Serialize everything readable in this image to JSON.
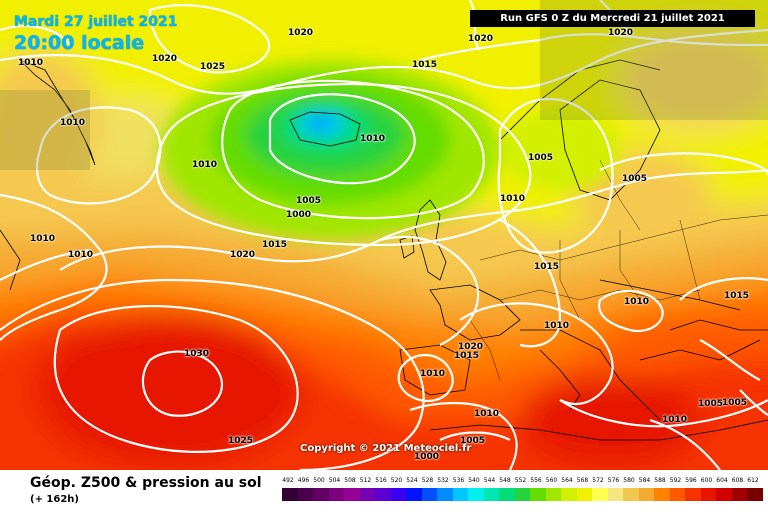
{
  "header": {
    "date": "Mardi 27 juillet 2021",
    "time": "20:00 locale",
    "run": "Run GFS 0 Z du Mercredi 21 juillet 2021",
    "copyright": "Copyright © 2021 Meteociel.fr"
  },
  "footer": {
    "title": "Géop. Z500 & pression au sol",
    "subtitle": "(+ 162h)"
  },
  "legend": {
    "values": [
      "492",
      "496",
      "500",
      "504",
      "508",
      "512",
      "516",
      "520",
      "524",
      "528",
      "532",
      "536",
      "540",
      "544",
      "548",
      "552",
      "556",
      "560",
      "564",
      "568",
      "572",
      "576",
      "580",
      "584",
      "588",
      "592",
      "596",
      "600",
      "604",
      "608",
      "612"
    ],
    "colors": [
      "#320032",
      "#4b004b",
      "#640064",
      "#7d007d",
      "#960096",
      "#7800b4",
      "#5a00d2",
      "#3c00f0",
      "#0014ff",
      "#0050ff",
      "#008cff",
      "#00c8ff",
      "#00f0f0",
      "#00e6b4",
      "#00dc78",
      "#28d23c",
      "#64dc00",
      "#a0e600",
      "#d2f000",
      "#f0f000",
      "#ffff50",
      "#f5e680",
      "#f0c850",
      "#f5aa32",
      "#ff8200",
      "#ff5a00",
      "#f53200",
      "#e61400",
      "#d20000",
      "#a00000",
      "#780000"
    ]
  },
  "colors": {
    "isobar": "#ffffff",
    "title_blue": "#00b7ff"
  },
  "isobars": [
    {
      "label": "1020"
    },
    {
      "label": "1010"
    },
    {
      "label": "1020"
    },
    {
      "label": "1025"
    },
    {
      "label": "1010"
    },
    {
      "label": "1015"
    },
    {
      "label": "1020"
    },
    {
      "label": "1020"
    },
    {
      "label": "1010"
    },
    {
      "label": "1010"
    },
    {
      "label": "1005"
    },
    {
      "label": "1000"
    },
    {
      "label": "1005"
    },
    {
      "label": "1005"
    },
    {
      "label": "1010"
    },
    {
      "label": "1015"
    },
    {
      "label": "1020"
    },
    {
      "label": "1010"
    },
    {
      "label": "1015"
    },
    {
      "label": "1010"
    },
    {
      "label": "1015"
    },
    {
      "label": "1010"
    },
    {
      "label": "1020"
    },
    {
      "label": "1015"
    },
    {
      "label": "1030"
    },
    {
      "label": "1010"
    },
    {
      "label": "1025"
    },
    {
      "label": "1010"
    },
    {
      "label": "1005"
    },
    {
      "label": "1000"
    },
    {
      "label": "1005"
    },
    {
      "label": "1010"
    },
    {
      "label": "1005"
    },
    {
      "label": "1010"
    }
  ]
}
